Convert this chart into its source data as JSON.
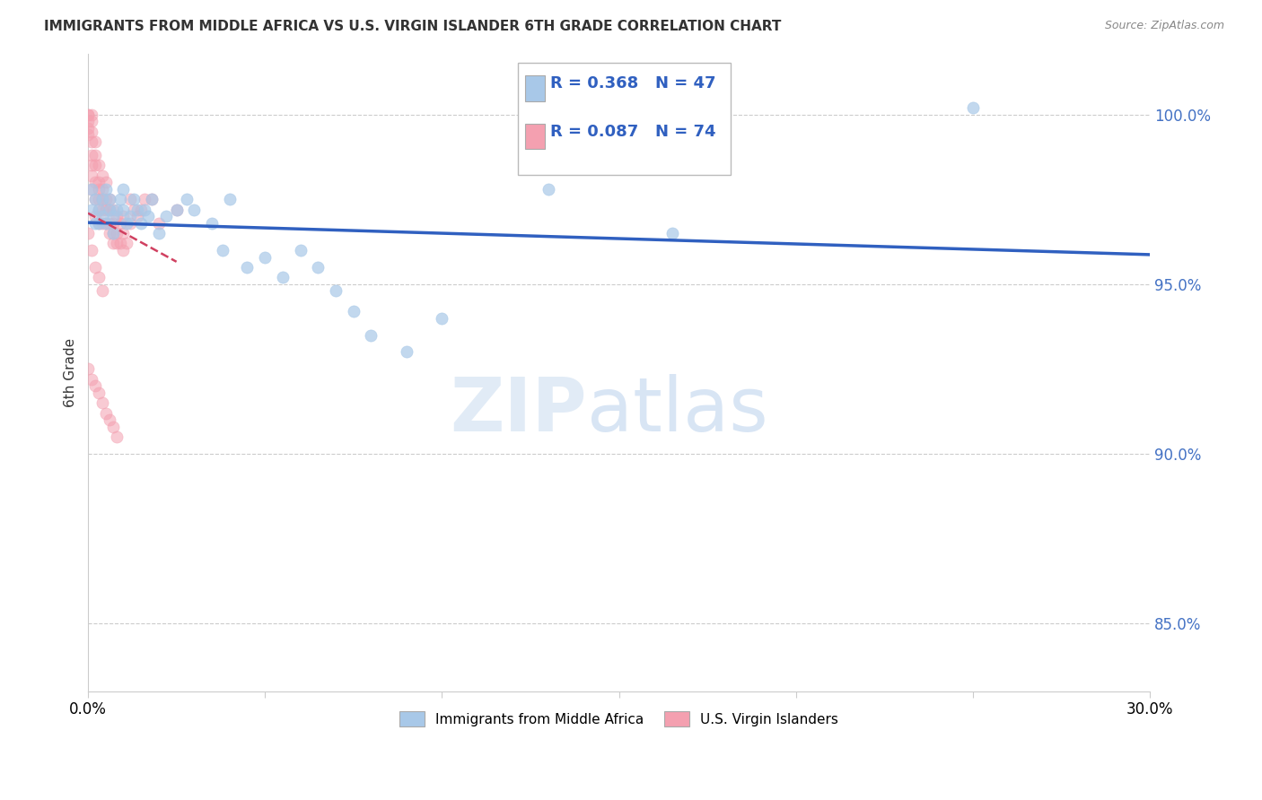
{
  "title": "IMMIGRANTS FROM MIDDLE AFRICA VS U.S. VIRGIN ISLANDER 6TH GRADE CORRELATION CHART",
  "source": "Source: ZipAtlas.com",
  "ylabel": "6th Grade",
  "y_ticks": [
    85.0,
    90.0,
    95.0,
    100.0
  ],
  "y_tick_labels": [
    "85.0%",
    "90.0%",
    "95.0%",
    "100.0%"
  ],
  "xlim": [
    0.0,
    0.3
  ],
  "ylim": [
    83.0,
    101.8
  ],
  "legend_label_blue": "Immigrants from Middle Africa",
  "legend_label_pink": "U.S. Virgin Islanders",
  "R_blue": 0.368,
  "N_blue": 47,
  "R_pink": 0.087,
  "N_pink": 74,
  "blue_color": "#a8c8e8",
  "pink_color": "#f4a0b0",
  "blue_line_color": "#3060c0",
  "pink_line_color": "#d04060",
  "blue_x": [
    0.001,
    0.001,
    0.002,
    0.002,
    0.003,
    0.003,
    0.004,
    0.004,
    0.005,
    0.005,
    0.006,
    0.006,
    0.007,
    0.007,
    0.008,
    0.009,
    0.01,
    0.01,
    0.011,
    0.012,
    0.013,
    0.014,
    0.015,
    0.016,
    0.017,
    0.018,
    0.02,
    0.022,
    0.025,
    0.028,
    0.03,
    0.035,
    0.038,
    0.04,
    0.045,
    0.05,
    0.055,
    0.06,
    0.065,
    0.07,
    0.075,
    0.08,
    0.09,
    0.1,
    0.13,
    0.165,
    0.25
  ],
  "blue_y": [
    97.8,
    97.2,
    97.5,
    96.8,
    97.2,
    96.8,
    97.5,
    97.0,
    97.8,
    96.8,
    97.5,
    97.2,
    97.0,
    96.5,
    97.2,
    97.5,
    97.8,
    97.2,
    96.8,
    97.0,
    97.5,
    97.2,
    96.8,
    97.2,
    97.0,
    97.5,
    96.5,
    97.0,
    97.2,
    97.5,
    97.2,
    96.8,
    96.0,
    97.5,
    95.5,
    95.8,
    95.2,
    96.0,
    95.5,
    94.8,
    94.2,
    93.5,
    93.0,
    94.0,
    97.8,
    96.5,
    100.2
  ],
  "pink_x": [
    0.0,
    0.0,
    0.0,
    0.0,
    0.0,
    0.001,
    0.001,
    0.001,
    0.001,
    0.001,
    0.001,
    0.001,
    0.001,
    0.002,
    0.002,
    0.002,
    0.002,
    0.002,
    0.002,
    0.003,
    0.003,
    0.003,
    0.003,
    0.003,
    0.003,
    0.004,
    0.004,
    0.004,
    0.004,
    0.004,
    0.005,
    0.005,
    0.005,
    0.005,
    0.006,
    0.006,
    0.006,
    0.006,
    0.007,
    0.007,
    0.007,
    0.007,
    0.008,
    0.008,
    0.008,
    0.009,
    0.009,
    0.01,
    0.01,
    0.01,
    0.011,
    0.012,
    0.012,
    0.013,
    0.014,
    0.015,
    0.016,
    0.018,
    0.02,
    0.025,
    0.0,
    0.001,
    0.002,
    0.003,
    0.004,
    0.0,
    0.001,
    0.002,
    0.003,
    0.004,
    0.005,
    0.006,
    0.007,
    0.008
  ],
  "pink_y": [
    100.0,
    100.0,
    99.8,
    99.6,
    99.4,
    100.0,
    99.8,
    99.5,
    99.2,
    98.8,
    98.5,
    98.2,
    97.8,
    99.2,
    98.8,
    98.5,
    98.0,
    97.5,
    97.0,
    98.5,
    98.0,
    97.8,
    97.5,
    97.2,
    96.8,
    98.2,
    97.8,
    97.5,
    97.2,
    96.8,
    98.0,
    97.5,
    97.2,
    96.8,
    97.5,
    97.2,
    96.8,
    96.5,
    97.2,
    96.8,
    96.5,
    96.2,
    97.0,
    96.5,
    96.2,
    96.8,
    96.2,
    97.0,
    96.5,
    96.0,
    96.2,
    97.5,
    96.8,
    97.2,
    97.0,
    97.2,
    97.5,
    97.5,
    96.8,
    97.2,
    96.5,
    96.0,
    95.5,
    95.2,
    94.8,
    92.5,
    92.2,
    92.0,
    91.8,
    91.5,
    91.2,
    91.0,
    90.8,
    90.5
  ]
}
